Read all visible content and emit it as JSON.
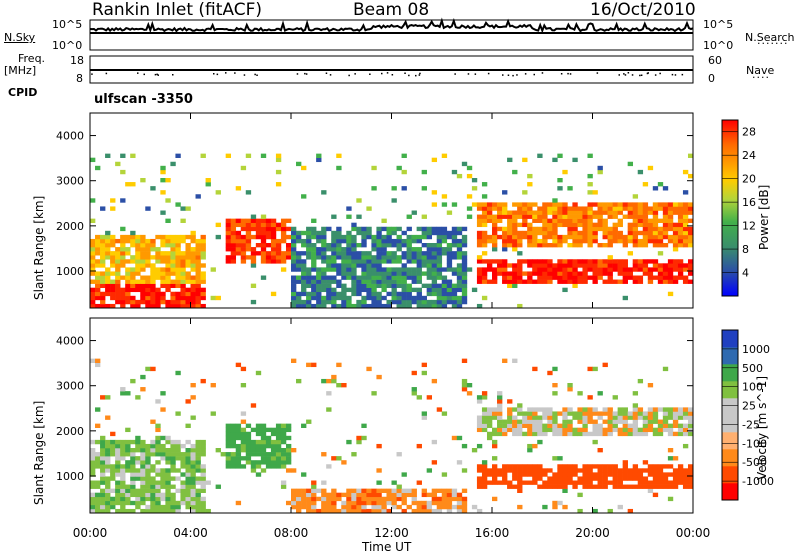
{
  "header": {
    "station": "Rankin Inlet (fitACF)",
    "beam": "Beam 08",
    "date": "16/Oct/2010"
  },
  "left_labels": {
    "nsky": "N.Sky",
    "freq": "Freq.",
    "freq_unit": "[MHz]",
    "cpid": "CPID"
  },
  "right_labels": {
    "nsearch": "N.Search",
    "nave": "Nave"
  },
  "cpid_text": "ulfscan -3350",
  "noise_axis": {
    "left_ticks": [
      "10^5",
      "10^0"
    ],
    "right_ticks": [
      "10^5",
      "10^0"
    ]
  },
  "freq_axis": {
    "left_ticks": [
      "18",
      "8"
    ],
    "right_ticks": [
      "60",
      "0"
    ]
  },
  "colors": {
    "power_scale": [
      "#0000ff",
      "#2b4fa6",
      "#3a8f6b",
      "#42b04a",
      "#b4d43a",
      "#ffcc00",
      "#ff9900",
      "#ff6a00",
      "#ff2a00",
      "#ff0000"
    ],
    "velocity_scale": [
      "#ff0000",
      "#ff4a00",
      "#ff8a1a",
      "#ffb070",
      "#c8c8c8",
      "#c8c8c8",
      "#80c040",
      "#3fa84a",
      "#2f6ab0",
      "#2040c0"
    ]
  },
  "chart_data": [
    {
      "type": "heatmap",
      "title": "Power",
      "xlabel": "",
      "ylabel": "Slant Range [km]",
      "x_ticks": [
        "00:00",
        "04:00",
        "08:00",
        "12:00",
        "16:00",
        "20:00",
        "00:00"
      ],
      "xlim_hours": [
        0,
        24
      ],
      "y_ticks": [
        1000,
        2000,
        3000,
        4000
      ],
      "ylim_km": [
        180,
        4500
      ],
      "colorbar": {
        "label": "Power [dB]",
        "ticks": [
          4,
          8,
          12,
          16,
          20,
          24,
          28
        ]
      },
      "features": [
        {
          "hours": [
            0,
            4.5
          ],
          "range_km": [
            200,
            700
          ],
          "power_db": 28
        },
        {
          "hours": [
            0,
            4.5
          ],
          "range_km": [
            700,
            1800
          ],
          "power_db": 18
        },
        {
          "hours": [
            5.5,
            8
          ],
          "range_km": [
            1200,
            2200
          ],
          "power_db": 26
        },
        {
          "hours": [
            8,
            15
          ],
          "range_km": [
            200,
            2000
          ],
          "power_db": 6
        },
        {
          "hours": [
            15.5,
            24
          ],
          "range_km": [
            700,
            1300
          ],
          "power_db": 28
        },
        {
          "hours": [
            15.5,
            24
          ],
          "range_km": [
            1500,
            2500
          ],
          "power_db": 22
        }
      ]
    },
    {
      "type": "heatmap",
      "title": "Velocity",
      "xlabel": "Time UT",
      "ylabel": "Slant Range [km]",
      "x_ticks": [
        "00:00",
        "04:00",
        "08:00",
        "12:00",
        "16:00",
        "20:00",
        "00:00"
      ],
      "xlim_hours": [
        0,
        24
      ],
      "y_ticks": [
        1000,
        2000,
        3000,
        4000
      ],
      "ylim_km": [
        180,
        4500
      ],
      "colorbar": {
        "label": "Velocity [m s^-1]",
        "ticks": [
          1000,
          500,
          100,
          25,
          -25,
          -100,
          -500,
          -1000
        ]
      },
      "features": [
        {
          "hours": [
            0,
            4.5
          ],
          "range_km": [
            200,
            1800
          ],
          "velocity": 60
        },
        {
          "hours": [
            5.5,
            8
          ],
          "range_km": [
            1200,
            2200
          ],
          "velocity": 150
        },
        {
          "hours": [
            8,
            15
          ],
          "range_km": [
            200,
            700
          ],
          "velocity": -60
        },
        {
          "hours": [
            15.5,
            24
          ],
          "range_km": [
            700,
            1300
          ],
          "velocity": -300
        },
        {
          "hours": [
            15.5,
            24
          ],
          "range_km": [
            1900,
            2500
          ],
          "velocity": 0
        }
      ]
    }
  ]
}
